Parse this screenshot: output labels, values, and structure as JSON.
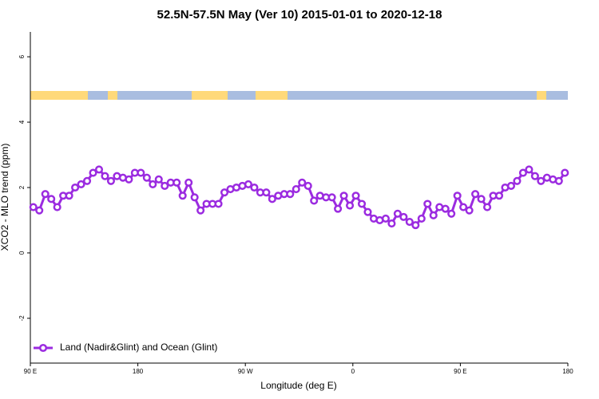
{
  "chart_data": {
    "type": "line",
    "title": "52.5N-57.5N May (Ver 10)   2015-01-01 to 2020-12-18",
    "x_label": "Longitude (deg E)",
    "y_label": "XCO2 - MLO trend (ppm)",
    "x": [
      92.5,
      97.5,
      102.5,
      107.5,
      112.5,
      117.5,
      122.5,
      127.5,
      132.5,
      137.5,
      142.5,
      147.5,
      152.5,
      157.5,
      162.5,
      167.5,
      172.5,
      177.5,
      182.5,
      187.5,
      192.5,
      197.5,
      202.5,
      207.5,
      212.5,
      217.5,
      222.5,
      227.5,
      232.5,
      237.5,
      242.5,
      247.5,
      252.5,
      257.5,
      262.5,
      267.5,
      272.5,
      277.5,
      282.5,
      287.5,
      292.5,
      297.5,
      302.5,
      307.5,
      312.5,
      317.5,
      322.5,
      327.5,
      332.5,
      337.5,
      342.5,
      347.5,
      352.5,
      357.5,
      362.5,
      367.5,
      372.5,
      377.5,
      382.5,
      387.5,
      392.5,
      397.5,
      402.5,
      407.5,
      412.5,
      417.5,
      422.5,
      427.5,
      432.5,
      437.5,
      442.5,
      447.5,
      452.5,
      457.5,
      462.5,
      467.5,
      472.5,
      477.5,
      482.5,
      487.5,
      492.5,
      497.5,
      502.5,
      507.5,
      512.5,
      517.5,
      522.5,
      527.5,
      532.5,
      537.5
    ],
    "series": [
      {
        "name": "Land (Nadir&Glint) and Ocean (Glint)",
        "color": "#9b2be0",
        "values": [
          1.4,
          1.3,
          1.8,
          1.65,
          1.4,
          1.75,
          1.75,
          2.0,
          2.1,
          2.2,
          2.45,
          2.55,
          2.35,
          2.2,
          2.35,
          2.3,
          2.25,
          2.45,
          2.45,
          2.3,
          2.1,
          2.25,
          2.05,
          2.15,
          2.15,
          1.75,
          2.15,
          1.7,
          1.3,
          1.5,
          1.5,
          1.5,
          1.85,
          1.95,
          2.0,
          2.05,
          2.1,
          2.0,
          1.85,
          1.85,
          1.65,
          1.75,
          1.8,
          1.8,
          1.95,
          2.15,
          2.05,
          1.6,
          1.75,
          1.7,
          1.7,
          1.35,
          1.75,
          1.45,
          1.75,
          1.5,
          1.25,
          1.05,
          1.0,
          1.05,
          0.9,
          1.2,
          1.1,
          0.95,
          0.85,
          1.05,
          1.5,
          1.15,
          1.4,
          1.35,
          1.2,
          1.75,
          1.4,
          1.3,
          1.8,
          1.65,
          1.4,
          1.75,
          1.75,
          2.0,
          2.05,
          2.2,
          2.45,
          2.55,
          2.35,
          2.2,
          2.3,
          2.25,
          2.2,
          2.45
        ]
      }
    ],
    "xlim": [
      90,
      540
    ],
    "xticks": [
      {
        "value": 90,
        "label": "90 E"
      },
      180,
      {
        "value": 270,
        "label": "90 W"
      },
      {
        "value": 360,
        "label": "0"
      },
      {
        "value": 450,
        "label": "90 E"
      },
      {
        "value": 540,
        "label": "180"
      }
    ],
    "ylim": [
      -3.37,
      6.76
    ],
    "yticks": [
      -2,
      0,
      2,
      4,
      6
    ],
    "legend": "bottomleft"
  }
}
